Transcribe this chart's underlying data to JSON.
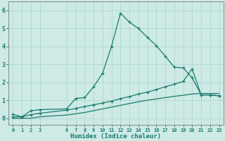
{
  "xlabel": "Humidex (Indice chaleur)",
  "xlim": [
    -0.5,
    23.5
  ],
  "ylim": [
    -0.35,
    6.5
  ],
  "xticks": [
    0,
    1,
    2,
    3,
    6,
    7,
    8,
    9,
    10,
    11,
    12,
    13,
    14,
    15,
    16,
    17,
    18,
    19,
    20,
    21,
    22,
    23
  ],
  "yticks": [
    0,
    1,
    2,
    3,
    4,
    5,
    6
  ],
  "bg_color": "#cdeae5",
  "grid_color": "#b5d9d3",
  "line_color": "#1a7a6e",
  "line1_x": [
    0,
    1,
    2,
    3,
    6,
    7,
    8,
    9,
    10,
    11,
    12,
    13,
    14,
    15,
    16,
    17,
    18,
    19,
    20,
    21,
    22,
    23
  ],
  "line1_y": [
    0.22,
    0.08,
    0.42,
    0.48,
    0.52,
    1.1,
    1.15,
    1.75,
    2.5,
    4.0,
    5.85,
    5.35,
    5.0,
    4.5,
    4.05,
    3.45,
    2.85,
    2.8,
    2.25,
    1.3,
    1.3,
    1.25
  ],
  "line2_x": [
    0,
    1,
    2,
    3,
    6,
    7,
    8,
    9,
    10,
    11,
    12,
    13,
    14,
    15,
    16,
    17,
    18,
    19,
    20,
    21,
    22,
    23
  ],
  "line2_y": [
    0.08,
    0.08,
    0.2,
    0.28,
    0.45,
    0.55,
    0.65,
    0.75,
    0.85,
    0.95,
    1.1,
    1.2,
    1.35,
    1.45,
    1.6,
    1.75,
    1.9,
    2.05,
    2.75,
    1.3,
    1.3,
    1.25
  ],
  "line3_x": [
    0,
    1,
    2,
    3,
    6,
    7,
    8,
    9,
    10,
    11,
    12,
    13,
    14,
    15,
    16,
    17,
    18,
    19,
    20,
    21,
    22,
    23
  ],
  "line3_y": [
    0.0,
    0.0,
    0.0,
    0.08,
    0.18,
    0.25,
    0.32,
    0.42,
    0.52,
    0.62,
    0.72,
    0.82,
    0.92,
    1.0,
    1.08,
    1.15,
    1.22,
    1.28,
    1.35,
    1.38,
    1.38,
    1.38
  ]
}
